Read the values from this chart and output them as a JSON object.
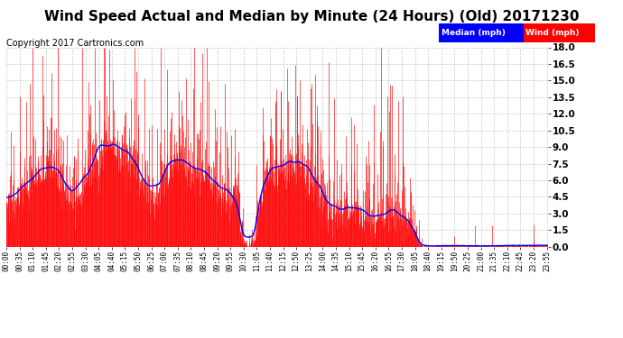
{
  "title": "Wind Speed Actual and Median by Minute (24 Hours) (Old) 20171230",
  "copyright": "Copyright 2017 Cartronics.com",
  "yticks": [
    0.0,
    1.5,
    3.0,
    4.5,
    6.0,
    7.5,
    9.0,
    10.5,
    12.0,
    13.5,
    15.0,
    16.5,
    18.0
  ],
  "ylim": [
    0,
    18.0
  ],
  "bg_color": "#ffffff",
  "plot_bg": "#ffffff",
  "grid_color": "#bbbbbb",
  "wind_color": "#ff0000",
  "median_color": "#0000ff",
  "legend_median_bg": "#0000ff",
  "legend_wind_bg": "#ff0000",
  "title_fontsize": 11,
  "copyright_fontsize": 7,
  "tick_interval_min": 35
}
